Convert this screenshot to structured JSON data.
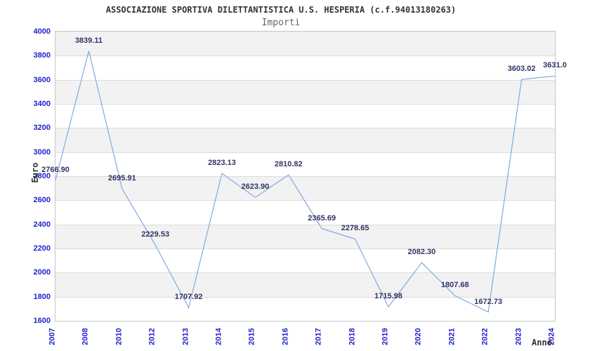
{
  "chart_data": {
    "type": "line",
    "title": "ASSOCIAZIONE SPORTIVA DILETTANTISTICA U.S. HESPERIA (c.f.94013180263)",
    "subtitle": "Importi",
    "xlabel": "Anno",
    "ylabel": "Euro",
    "categories": [
      "2007",
      "2008",
      "2010",
      "2012",
      "2013",
      "2014",
      "2015",
      "2016",
      "2017",
      "2018",
      "2019",
      "2020",
      "2021",
      "2022",
      "2023",
      "2024"
    ],
    "values": [
      2766.9,
      3839.11,
      2695.91,
      2229.53,
      1707.92,
      2823.13,
      2623.9,
      2810.82,
      2365.69,
      2278.65,
      1715.98,
      2082.3,
      1807.68,
      1672.73,
      3603.02,
      3631.0
    ],
    "value_labels": [
      "2766.90",
      "3839.11",
      "2695.91",
      "2229.53",
      "1707.92",
      "2823.13",
      "2623.90",
      "2810.82",
      "2365.69",
      "2278.65",
      "1715.98",
      "2082.30",
      "1807.68",
      "1672.73",
      "3603.02",
      "3631.0"
    ],
    "ylim": [
      1600,
      4000
    ],
    "ytick_step": 200,
    "ytick_labels": [
      "1600",
      "1800",
      "2000",
      "2200",
      "2400",
      "2600",
      "2800",
      "3000",
      "3200",
      "3400",
      "3600",
      "3800",
      "4000"
    ],
    "grid": "horizontal gridlines with alternating gray bands",
    "legend": "none",
    "colors": {
      "line": "#7fabe0",
      "tick_label": "#2222cc",
      "value_label": "#333366",
      "band": "#f2f2f2",
      "gridline": "#dcdcdc",
      "border": "#c6c6c6",
      "title": "#333333",
      "subtitle": "#666666",
      "axis_title": "#333333"
    }
  }
}
